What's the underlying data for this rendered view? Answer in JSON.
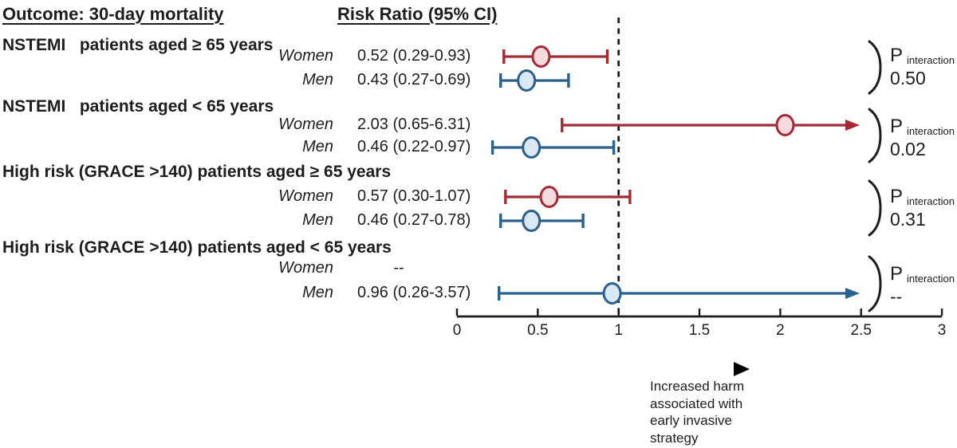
{
  "chart_data": {
    "type": "forest",
    "title_left": "Outcome: 30-day mortality",
    "title_right": "Risk Ratio (95% CI)",
    "reference_line": 1,
    "xlim": [
      0,
      3
    ],
    "x_ticks": [
      "0",
      "0.5",
      "1",
      "1.5",
      "2",
      "2.5",
      "3"
    ],
    "x_tick_values": [
      0,
      0.5,
      1,
      1.5,
      2,
      2.5,
      3
    ],
    "grid": false,
    "arrow_annotation": [
      "Increased harm",
      "associated with",
      "early invasive",
      "strategy"
    ],
    "p_label_main": "P",
    "p_label_sub": "interaction",
    "colors": {
      "women_stroke": "#A42B35",
      "women_fill": "#F6DADD",
      "men_stroke": "#2B5F8C",
      "men_fill": "#DAE8F4",
      "axis": "#1D1D1B"
    },
    "groups": [
      {
        "header": "NSTEMI   patients aged ≥ 65 years",
        "p_value": "0.50",
        "rows": [
          {
            "sex": "Women",
            "text": "0.52 (0.29-0.93)",
            "estimate": 0.52,
            "ci_low": 0.29,
            "ci_high": 0.93,
            "series": "women",
            "clipped": false
          },
          {
            "sex": "Men",
            "text": "0.43 (0.27-0.69)",
            "estimate": 0.43,
            "ci_low": 0.27,
            "ci_high": 0.69,
            "series": "men",
            "clipped": false
          }
        ]
      },
      {
        "header": "NSTEMI   patients aged < 65 years",
        "p_value": "0.02",
        "rows": [
          {
            "sex": "Women",
            "text": "2.03 (0.65-6.31)",
            "estimate": 2.03,
            "ci_low": 0.65,
            "ci_high": 6.31,
            "series": "women",
            "clipped": true
          },
          {
            "sex": "Men",
            "text": "0.46 (0.22-0.97)",
            "estimate": 0.46,
            "ci_low": 0.22,
            "ci_high": 0.97,
            "series": "men",
            "clipped": false
          }
        ]
      },
      {
        "header": "High risk (GRACE >140) patients aged ≥ 65 years",
        "p_value": "0.31",
        "rows": [
          {
            "sex": "Women",
            "text": "0.57 (0.30-1.07)",
            "estimate": 0.57,
            "ci_low": 0.3,
            "ci_high": 1.07,
            "series": "women",
            "clipped": false
          },
          {
            "sex": "Men",
            "text": "0.46 (0.27-0.78)",
            "estimate": 0.46,
            "ci_low": 0.27,
            "ci_high": 0.78,
            "series": "men",
            "clipped": false
          }
        ]
      },
      {
        "header": "High risk (GRACE >140) patients aged < 65 years",
        "p_value": "--",
        "rows": [
          {
            "sex": "Women",
            "text": "--",
            "estimate": null,
            "ci_low": null,
            "ci_high": null,
            "series": "women",
            "clipped": false
          },
          {
            "sex": "Men",
            "text": "0.96 (0.26-3.57)",
            "estimate": 0.96,
            "ci_low": 0.26,
            "ci_high": 3.57,
            "series": "men",
            "clipped": true
          }
        ]
      }
    ]
  }
}
